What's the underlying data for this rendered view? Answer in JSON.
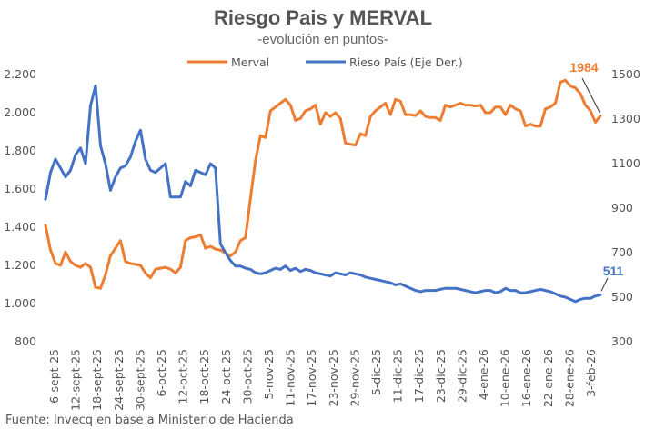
{
  "chart_data": {
    "type": "line",
    "title": "Riesgo Pais y MERVAL",
    "subtitle": "-evolución en puntos-",
    "source": "Fuente: Invecq en base a Ministerio de Hacienda",
    "y_left": {
      "ylim": [
        800,
        2200
      ],
      "ticks": [
        "800",
        "1.000",
        "1.200",
        "1.400",
        "1.600",
        "1.800",
        "2.000",
        "2.200"
      ],
      "tick_values": [
        800,
        1000,
        1200,
        1400,
        1600,
        1800,
        2000,
        2200
      ]
    },
    "y_right": {
      "ylim": [
        300,
        1500
      ],
      "ticks": [
        "300",
        "500",
        "700",
        "900",
        "1100",
        "1300",
        "1500"
      ],
      "tick_values": [
        300,
        500,
        700,
        900,
        1100,
        1300,
        1500
      ]
    },
    "x_ticks": [
      "6-sept-25",
      "12-sept-25",
      "18-sept-25",
      "24-sept-25",
      "30-sept-25",
      "6-oct-25",
      "12-oct-25",
      "18-oct-25",
      "24-oct-25",
      "30-oct-25",
      "5-nov-25",
      "11-nov-25",
      "17-nov-25",
      "23-nov-25",
      "29-nov-25",
      "5-dic-25",
      "11-dic-25",
      "17-dic-25",
      "23-dic-25",
      "29-dic-25",
      "4-ene-26",
      "10-ene-26",
      "16-ene-26",
      "22-ene-26",
      "28-ene-26",
      "3-feb-26"
    ],
    "legend_position": "top",
    "series": [
      {
        "name": "Merval",
        "axis": "left",
        "color": "#ED7D31",
        "points": [
          [
            0,
            1410
          ],
          [
            1,
            1280
          ],
          [
            2,
            1210
          ],
          [
            3,
            1200
          ],
          [
            4,
            1270
          ],
          [
            5,
            1220
          ],
          [
            6,
            1200
          ],
          [
            7,
            1190
          ],
          [
            8,
            1210
          ],
          [
            9,
            1190
          ],
          [
            10,
            1085
          ],
          [
            11,
            1080
          ],
          [
            12,
            1150
          ],
          [
            13,
            1250
          ],
          [
            14,
            1290
          ],
          [
            15,
            1330
          ],
          [
            16,
            1220
          ],
          [
            17,
            1210
          ],
          [
            18,
            1205
          ],
          [
            19,
            1200
          ],
          [
            20,
            1160
          ],
          [
            21,
            1135
          ],
          [
            22,
            1180
          ],
          [
            23,
            1185
          ],
          [
            24,
            1190
          ],
          [
            25,
            1180
          ],
          [
            26,
            1160
          ],
          [
            27,
            1190
          ],
          [
            28,
            1330
          ],
          [
            29,
            1345
          ],
          [
            30,
            1350
          ],
          [
            31,
            1360
          ],
          [
            32,
            1290
          ],
          [
            33,
            1300
          ],
          [
            34,
            1285
          ],
          [
            35,
            1280
          ],
          [
            36,
            1265
          ],
          [
            37,
            1250
          ],
          [
            38,
            1270
          ],
          [
            39,
            1330
          ],
          [
            40,
            1345
          ],
          [
            41,
            1550
          ],
          [
            42,
            1750
          ],
          [
            43,
            1880
          ],
          [
            44,
            1870
          ],
          [
            45,
            2010
          ],
          [
            46,
            2030
          ],
          [
            47,
            2050
          ],
          [
            48,
            2070
          ],
          [
            49,
            2040
          ],
          [
            50,
            1960
          ],
          [
            51,
            1970
          ],
          [
            52,
            2010
          ],
          [
            53,
            2020
          ],
          [
            54,
            2040
          ],
          [
            55,
            1940
          ],
          [
            56,
            2000
          ],
          [
            57,
            1980
          ],
          [
            58,
            2000
          ],
          [
            59,
            1970
          ],
          [
            60,
            1840
          ],
          [
            61,
            1835
          ],
          [
            62,
            1830
          ],
          [
            63,
            1890
          ],
          [
            64,
            1880
          ],
          [
            65,
            1980
          ],
          [
            66,
            2010
          ],
          [
            67,
            2030
          ],
          [
            68,
            2050
          ],
          [
            69,
            1990
          ],
          [
            70,
            2070
          ],
          [
            71,
            2060
          ],
          [
            72,
            1990
          ],
          [
            73,
            1990
          ],
          [
            74,
            1985
          ],
          [
            75,
            2010
          ],
          [
            76,
            1980
          ],
          [
            77,
            1975
          ],
          [
            78,
            1975
          ],
          [
            79,
            1960
          ],
          [
            80,
            2040
          ],
          [
            81,
            2030
          ],
          [
            82,
            2040
          ],
          [
            83,
            2050
          ],
          [
            84,
            2040
          ],
          [
            85,
            2040
          ],
          [
            86,
            2035
          ],
          [
            87,
            2040
          ],
          [
            88,
            2000
          ],
          [
            89,
            2000
          ],
          [
            90,
            2030
          ],
          [
            91,
            2030
          ],
          [
            92,
            1990
          ],
          [
            93,
            2040
          ],
          [
            94,
            2020
          ],
          [
            95,
            2010
          ],
          [
            96,
            1930
          ],
          [
            97,
            1940
          ],
          [
            98,
            1930
          ],
          [
            99,
            1930
          ],
          [
            100,
            2020
          ],
          [
            101,
            2030
          ],
          [
            102,
            2050
          ],
          [
            103,
            2160
          ],
          [
            104,
            2170
          ],
          [
            105,
            2140
          ],
          [
            106,
            2130
          ],
          [
            107,
            2100
          ],
          [
            108,
            2040
          ],
          [
            109,
            2010
          ],
          [
            110,
            1950
          ],
          [
            111,
            1984
          ]
        ]
      },
      {
        "name": "Rieso País (Eje Der.)",
        "axis": "right",
        "color": "#4472C4",
        "points": [
          [
            0,
            940
          ],
          [
            1,
            1060
          ],
          [
            2,
            1120
          ],
          [
            3,
            1080
          ],
          [
            4,
            1040
          ],
          [
            5,
            1070
          ],
          [
            6,
            1140
          ],
          [
            7,
            1170
          ],
          [
            8,
            1100
          ],
          [
            9,
            1360
          ],
          [
            10,
            1450
          ],
          [
            11,
            1180
          ],
          [
            12,
            1100
          ],
          [
            13,
            980
          ],
          [
            14,
            1040
          ],
          [
            15,
            1080
          ],
          [
            16,
            1090
          ],
          [
            17,
            1130
          ],
          [
            18,
            1200
          ],
          [
            19,
            1250
          ],
          [
            20,
            1120
          ],
          [
            21,
            1070
          ],
          [
            22,
            1060
          ],
          [
            23,
            1080
          ],
          [
            24,
            1100
          ],
          [
            25,
            950
          ],
          [
            26,
            950
          ],
          [
            27,
            950
          ],
          [
            28,
            1020
          ],
          [
            29,
            1000
          ],
          [
            30,
            1070
          ],
          [
            31,
            1060
          ],
          [
            32,
            1050
          ],
          [
            33,
            1100
          ],
          [
            34,
            1080
          ],
          [
            35,
            740
          ],
          [
            36,
            700
          ],
          [
            37,
            665
          ],
          [
            38,
            640
          ],
          [
            39,
            640
          ],
          [
            40,
            630
          ],
          [
            41,
            625
          ],
          [
            42,
            610
          ],
          [
            43,
            605
          ],
          [
            44,
            610
          ],
          [
            45,
            620
          ],
          [
            46,
            630
          ],
          [
            47,
            625
          ],
          [
            48,
            640
          ],
          [
            49,
            620
          ],
          [
            50,
            630
          ],
          [
            51,
            615
          ],
          [
            52,
            625
          ],
          [
            53,
            620
          ],
          [
            54,
            610
          ],
          [
            55,
            605
          ],
          [
            56,
            600
          ],
          [
            57,
            595
          ],
          [
            58,
            610
          ],
          [
            59,
            605
          ],
          [
            60,
            600
          ],
          [
            61,
            610
          ],
          [
            62,
            605
          ],
          [
            63,
            600
          ],
          [
            64,
            590
          ],
          [
            65,
            585
          ],
          [
            66,
            580
          ],
          [
            67,
            575
          ],
          [
            68,
            570
          ],
          [
            69,
            565
          ],
          [
            70,
            555
          ],
          [
            71,
            560
          ],
          [
            72,
            550
          ],
          [
            73,
            540
          ],
          [
            74,
            530
          ],
          [
            75,
            525
          ],
          [
            76,
            530
          ],
          [
            77,
            530
          ],
          [
            78,
            530
          ],
          [
            79,
            535
          ],
          [
            80,
            540
          ],
          [
            81,
            540
          ],
          [
            82,
            540
          ],
          [
            83,
            535
          ],
          [
            84,
            530
          ],
          [
            85,
            525
          ],
          [
            86,
            520
          ],
          [
            87,
            525
          ],
          [
            88,
            530
          ],
          [
            89,
            530
          ],
          [
            90,
            520
          ],
          [
            91,
            525
          ],
          [
            92,
            540
          ],
          [
            93,
            530
          ],
          [
            94,
            530
          ],
          [
            95,
            520
          ],
          [
            96,
            520
          ],
          [
            97,
            525
          ],
          [
            98,
            530
          ],
          [
            99,
            535
          ],
          [
            100,
            530
          ],
          [
            101,
            525
          ],
          [
            102,
            515
          ],
          [
            103,
            505
          ],
          [
            104,
            500
          ],
          [
            105,
            490
          ],
          [
            106,
            480
          ],
          [
            107,
            490
          ],
          [
            108,
            495
          ],
          [
            109,
            495
          ],
          [
            110,
            505
          ],
          [
            111,
            511
          ]
        ]
      }
    ],
    "annotations": [
      {
        "text": "1984",
        "series": "Merval",
        "color": "#ED7D31"
      },
      {
        "text": "511",
        "series": "Rieso País (Eje Der.)",
        "color": "#4472C4"
      }
    ]
  }
}
